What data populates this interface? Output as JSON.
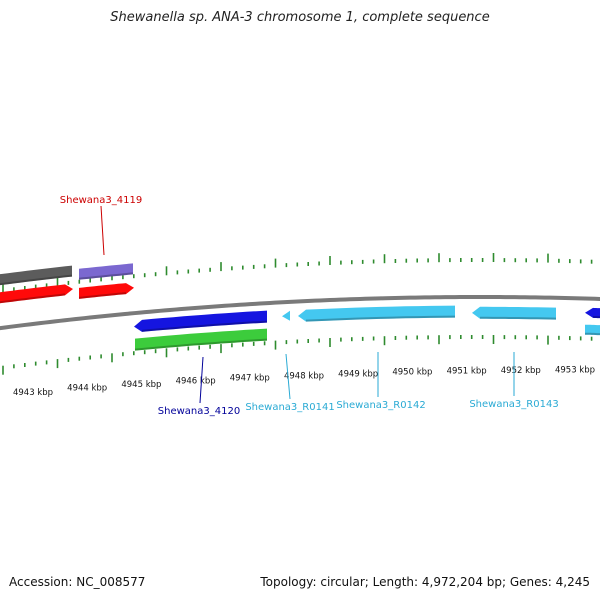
{
  "title": "Shewanella sp. ANA-3 chromosome 1, complete sequence",
  "footer": {
    "accession": "Accession: NC_008577",
    "summary": "Topology: circular; Length: 4,972,204 bp; Genes: 4,245"
  },
  "colors": {
    "tick": "#2e8b2e",
    "backbone": "#7a7a7a",
    "gray_gene": "#5c5c5c",
    "purple_gene": "#7b68d0",
    "red_gene": "#ff0a0a",
    "blue_gene": "#1515e0",
    "green_gene": "#3ccc3c",
    "cyan_gene": "#44c8f0",
    "label_red": "#cc0000",
    "label_blue": "#000099",
    "label_cyan": "#2aaad4"
  },
  "scale": {
    "unit": "kbp",
    "labels": [
      "4943 kbp",
      "4944 kbp",
      "4945 kbp",
      "4946 kbp",
      "4947 kbp",
      "4948 kbp",
      "4949 kbp",
      "4950 kbp",
      "4951 kbp",
      "4952 kbp",
      "4953 kbp"
    ]
  },
  "features": [
    {
      "name": "gray-gene",
      "strand": "+",
      "color": "gray_gene",
      "shape": "box"
    },
    {
      "name": "purple-gene",
      "strand": "+",
      "color": "purple_gene",
      "shape": "box"
    },
    {
      "name": "red-gene-a",
      "strand": "+",
      "color": "red_gene",
      "shape": "arrow-right"
    },
    {
      "name": "red-gene-b",
      "strand": "+",
      "color": "red_gene",
      "shape": "arrow-right"
    },
    {
      "name": "blue-gene-4120",
      "strand": "-",
      "color": "blue_gene",
      "shape": "arrow-left"
    },
    {
      "name": "green-gene",
      "strand": "-",
      "color": "green_gene",
      "shape": "box"
    },
    {
      "name": "cyan-gene-R0141",
      "strand": "-",
      "color": "cyan_gene",
      "shape": "arrow-left"
    },
    {
      "name": "cyan-gene-R0142",
      "strand": "-",
      "color": "cyan_gene",
      "shape": "arrow-left"
    },
    {
      "name": "cyan-gene-R0143",
      "strand": "-",
      "color": "cyan_gene",
      "shape": "arrow-left"
    },
    {
      "name": "blue-gene-edge",
      "strand": "-",
      "color": "blue_gene",
      "shape": "arrow-left"
    },
    {
      "name": "cyan-gene-edge",
      "strand": "-",
      "color": "cyan_gene",
      "shape": "box"
    }
  ],
  "gene_labels": [
    {
      "text": "Shewana3_4119",
      "color": "label_red"
    },
    {
      "text": "Shewana3_4120",
      "color": "label_blue"
    },
    {
      "text": "Shewana3_R0141",
      "color": "label_cyan"
    },
    {
      "text": "Shewana3_R0142",
      "color": "label_cyan"
    },
    {
      "text": "Shewana3_R0143",
      "color": "label_cyan"
    }
  ]
}
